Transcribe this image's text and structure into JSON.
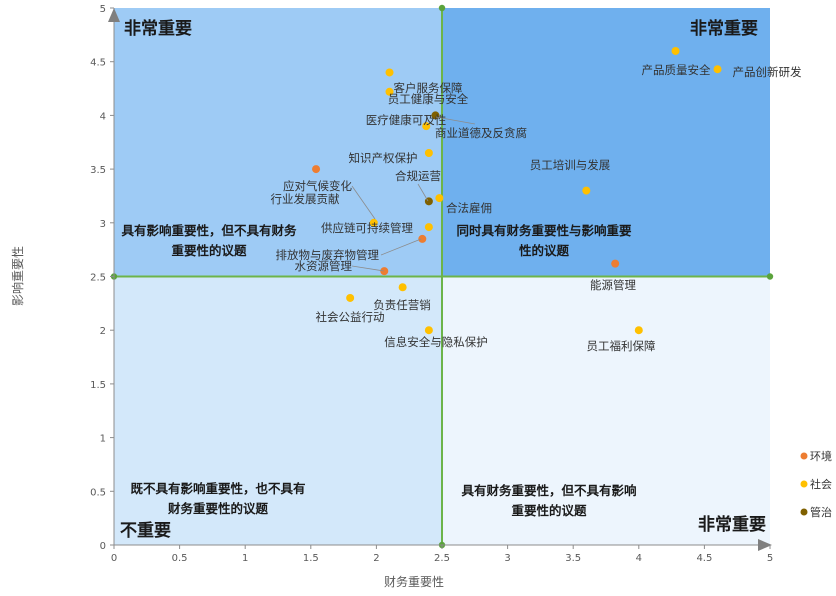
{
  "chart_data": {
    "type": "scatter",
    "title": "",
    "xlabel": "财务重要性",
    "ylabel": "影响重要性",
    "xlim": [
      0,
      5
    ],
    "ylim": [
      0,
      5
    ],
    "x_ticks": [
      "0",
      "0.5",
      "1",
      "1.5",
      "2",
      "2.5",
      "3",
      "3.5",
      "4",
      "4.5",
      "5"
    ],
    "y_ticks": [
      "0",
      "0.5",
      "1",
      "1.5",
      "2",
      "2.5",
      "3",
      "3.5",
      "4",
      "4.5",
      "5"
    ],
    "threshold": {
      "x": 2.5,
      "y": 2.5
    },
    "grid": false,
    "legend_position": "right",
    "quadrants": {
      "top_left": {
        "corner_label": "非常重要",
        "description": [
          "具有影响重要性，但不具有财务",
          "重要性的议题"
        ],
        "color": "#9ECBF5"
      },
      "top_right": {
        "corner_label": "非常重要",
        "description": [
          "同时具有财务重要性与影响重要",
          "性的议题"
        ],
        "color": "#6FB0EE"
      },
      "bottom_left": {
        "corner_label": "不重要",
        "description": [
          "既不具有影响重要性，也不具有",
          "财务重要性的议题"
        ],
        "color": "#D3E8FA"
      },
      "bottom_right": {
        "corner_label": "非常重要",
        "description": [
          "具有财务重要性，但不具有影响",
          "重要性的议题"
        ],
        "color": "#EDF5FD"
      }
    },
    "series": [
      {
        "name": "环境",
        "color": "#ED7D31",
        "points": [
          {
            "label": "应对气候变化",
            "x": 1.54,
            "y": 3.5
          },
          {
            "label": "排放物与废弃物管理",
            "x": 2.35,
            "y": 2.85
          },
          {
            "label": "水资源管理",
            "x": 2.06,
            "y": 2.55
          },
          {
            "label": "能源管理",
            "x": 3.82,
            "y": 2.62
          }
        ]
      },
      {
        "name": "社会",
        "color": "#FFC000",
        "points": [
          {
            "label": "产品质量安全",
            "x": 4.28,
            "y": 4.6
          },
          {
            "label": "产品创新研发",
            "x": 4.6,
            "y": 4.43
          },
          {
            "label": "客户服务保障",
            "x": 2.1,
            "y": 4.4
          },
          {
            "label": "员工健康与安全",
            "x": 2.1,
            "y": 4.22
          },
          {
            "label": "医疗健康可及性",
            "x": 2.38,
            "y": 3.9
          },
          {
            "label": "知识产权保护",
            "x": 2.4,
            "y": 3.65
          },
          {
            "label": "员工培训与发展",
            "x": 3.6,
            "y": 3.3
          },
          {
            "label": "合法雇佣",
            "x": 2.48,
            "y": 3.23
          },
          {
            "label": "行业发展贡献",
            "x": 1.98,
            "y": 3.0
          },
          {
            "label": "供应链可持续管理",
            "x": 2.4,
            "y": 2.96
          },
          {
            "label": "负责任营销",
            "x": 2.2,
            "y": 2.4
          },
          {
            "label": "社会公益行动",
            "x": 1.8,
            "y": 2.3
          },
          {
            "label": "信息安全与隐私保护",
            "x": 2.4,
            "y": 2.0
          },
          {
            "label": "员工福利保障",
            "x": 4.0,
            "y": 2.0
          }
        ]
      },
      {
        "name": "管治",
        "color": "#7F6000",
        "points": [
          {
            "label": "商业道德及反贪腐",
            "x": 2.45,
            "y": 4.0
          },
          {
            "label": "合规运营",
            "x": 2.4,
            "y": 3.2
          }
        ]
      }
    ]
  }
}
